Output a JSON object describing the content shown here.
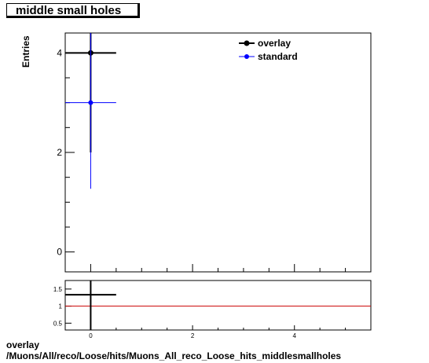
{
  "chart_data": {
    "title": "middle small holes",
    "type": "scatter",
    "main": {
      "ylabel": "Entries",
      "xlim": [
        -0.5,
        5.5
      ],
      "ylim": [
        -0.4,
        4.4
      ],
      "yticks": [
        0,
        2,
        4
      ],
      "legend_placement": "top-right",
      "series": [
        {
          "name": "overlay",
          "color": "#000000",
          "points": [
            {
              "x": 0,
              "y": 4,
              "xerr": 0.5,
              "yerr": 2
            }
          ]
        },
        {
          "name": "standard",
          "color": "#0000ff",
          "points": [
            {
              "x": 0,
              "y": 3,
              "xerr": 0.5,
              "yerr": 1.73
            }
          ]
        }
      ]
    },
    "ratio": {
      "xlim": [
        -0.5,
        5.5
      ],
      "ylim": [
        0.3,
        1.75
      ],
      "yticks": [
        "0.5",
        "1",
        "1.5"
      ],
      "xticks": [
        "0",
        "2",
        "4"
      ],
      "reference_line": {
        "y": 1,
        "color": "#cc0000"
      },
      "points": [
        {
          "x": 0,
          "y": 1.333,
          "xerr": 0.5,
          "yerr_low": 1.1,
          "yerr_high": 1.5
        }
      ]
    }
  },
  "footer": {
    "line1": "overlay",
    "line2": "/Muons/All/reco/Loose/hits/Muons_All_reco_Loose_hits_middlesmallholes"
  }
}
